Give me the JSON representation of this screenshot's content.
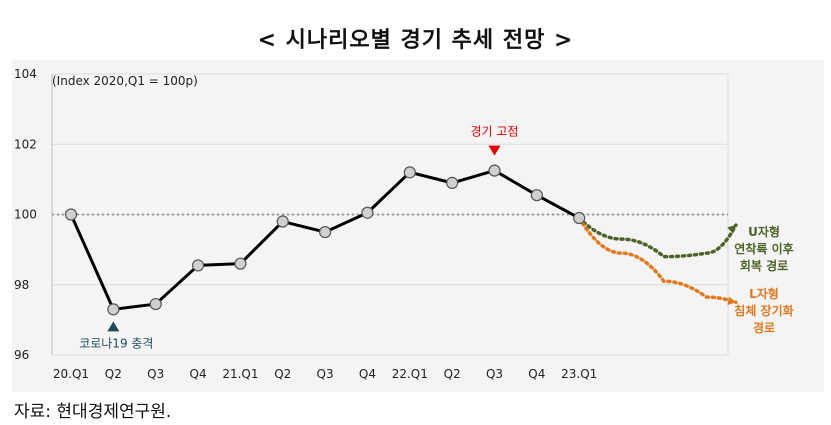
{
  "title": "< 시나리오별 경기 추세 전망 >",
  "source": "자료: 현대경제연구원.",
  "chart_data": {
    "type": "line",
    "note": "(Index 2020,Q1 = 100p)",
    "categories": [
      "20.Q1",
      "Q2",
      "Q3",
      "Q4",
      "21.Q1",
      "Q2",
      "Q3",
      "Q4",
      "22.Q1",
      "Q2",
      "Q3",
      "Q4",
      "23.Q1"
    ],
    "values": [
      100.0,
      97.3,
      97.45,
      98.55,
      98.6,
      99.8,
      99.5,
      100.05,
      101.2,
      100.9,
      101.25,
      100.55,
      99.9
    ],
    "ylim": [
      96,
      104
    ],
    "yticks": [
      96,
      98,
      100,
      102,
      104
    ],
    "baseline": 100,
    "grid": true,
    "annotations": [
      {
        "text": "코로나19 충격",
        "index": 1,
        "position": "below",
        "color": "#1f4e5a"
      },
      {
        "text": "경기 고점",
        "index": 10,
        "position": "above",
        "color": "#e00000"
      }
    ],
    "scenarios": [
      {
        "label": [
          "U자형",
          "연착륙 이후",
          "회복 경로"
        ],
        "color": "#4b6326",
        "x": [
          12,
          13,
          14,
          15,
          15.7
        ],
        "y": [
          99.9,
          99.3,
          98.8,
          98.9,
          99.7
        ]
      },
      {
        "label": [
          "L자형",
          "침체 장기화",
          "경로"
        ],
        "color": "#e07820",
        "x": [
          12,
          13,
          14,
          15,
          15.7
        ],
        "y": [
          99.9,
          98.9,
          98.1,
          97.65,
          97.5
        ]
      }
    ],
    "colors": {
      "line": "#000000",
      "marker_fill": "#d0d0d0",
      "baseline": "#999999",
      "grid": "#dcdcdc"
    }
  }
}
